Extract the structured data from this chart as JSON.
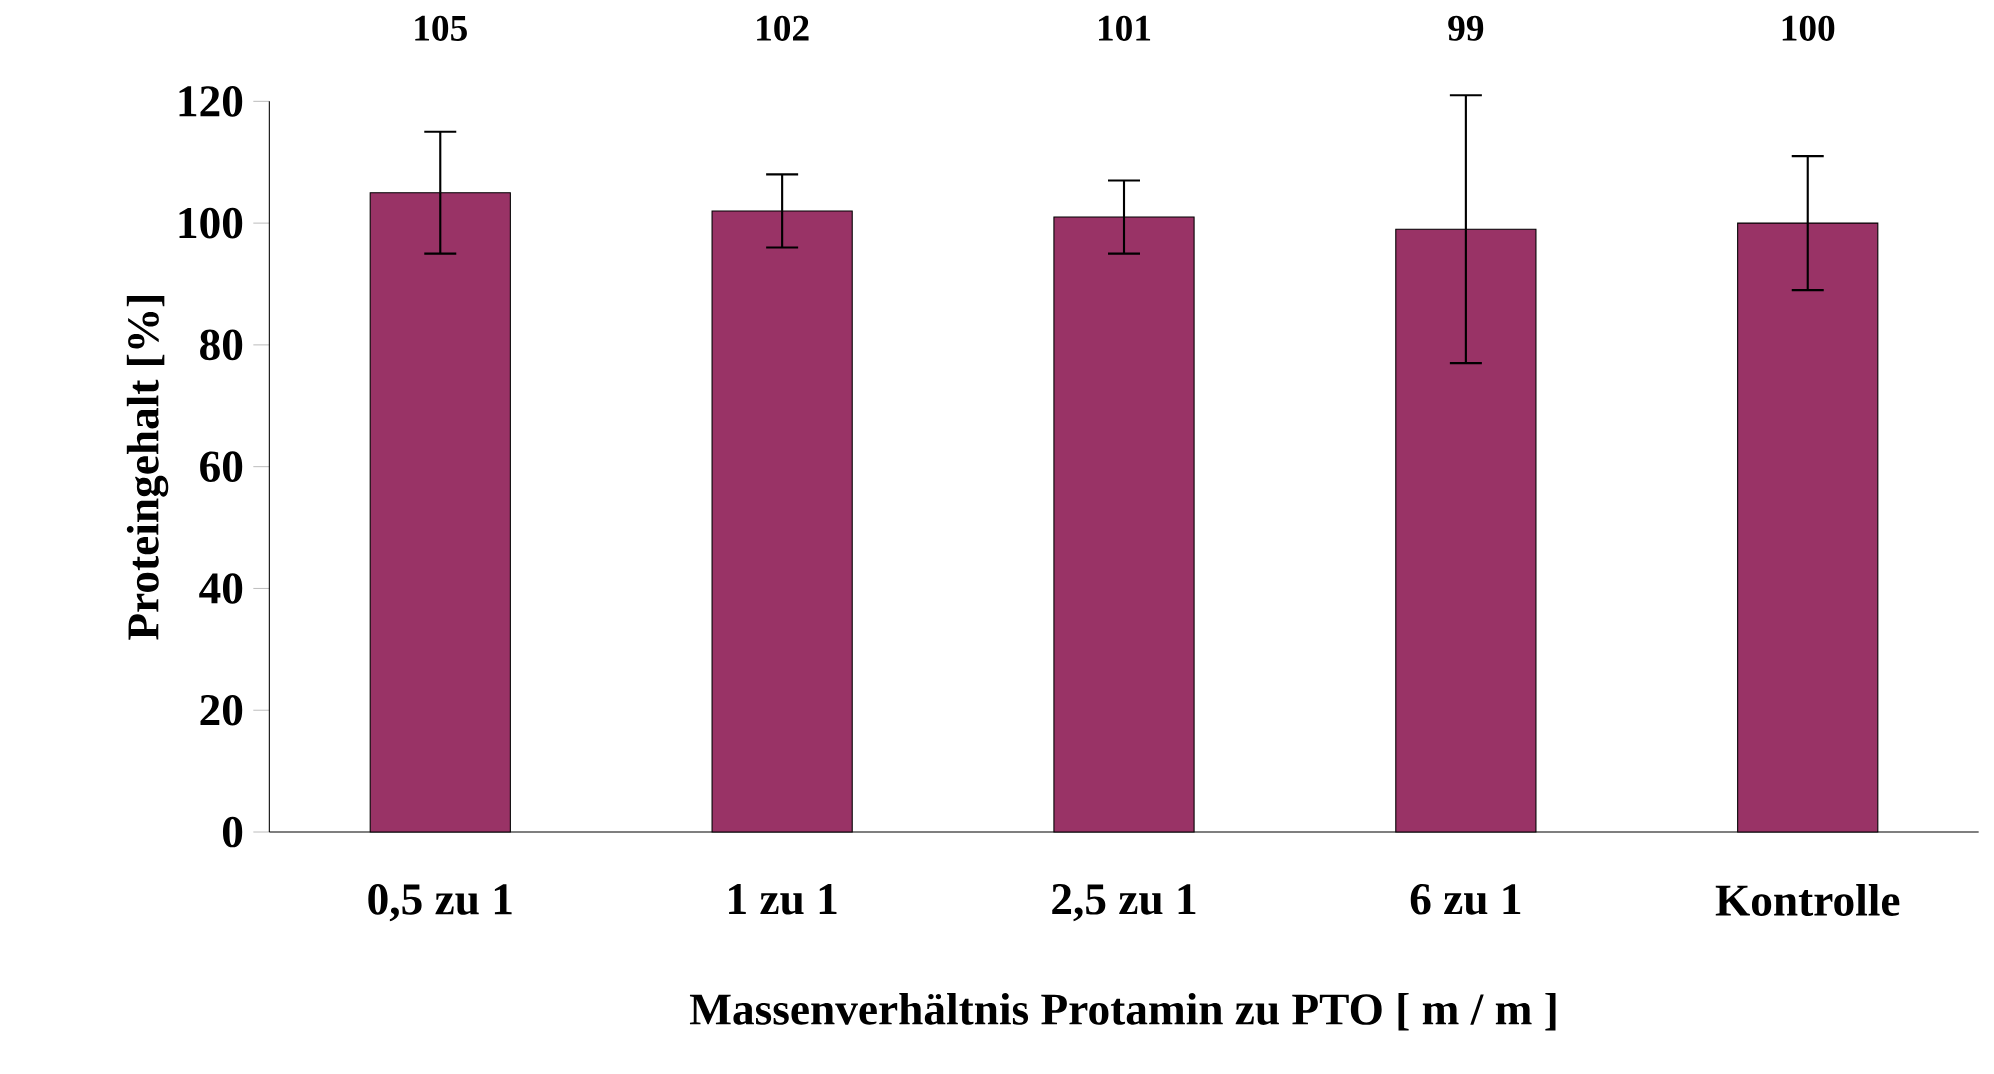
{
  "chart_data": {
    "type": "bar",
    "xlabel": "Massenverhältnis Protamin zu PTO [ m / m ]",
    "ylabel": "Proteingehalt [%]",
    "categories": [
      "0,5 zu 1",
      "1 zu 1",
      "2,5 zu 1",
      "6 zu 1",
      "Kontrolle"
    ],
    "values": [
      105,
      102,
      101,
      99,
      100
    ],
    "errors": [
      10,
      6,
      6,
      22,
      11
    ],
    "color": "#993366",
    "ylim": [
      0,
      120
    ],
    "yticks": [
      0,
      20,
      40,
      60,
      80,
      100,
      120
    ],
    "data_labels": true
  }
}
